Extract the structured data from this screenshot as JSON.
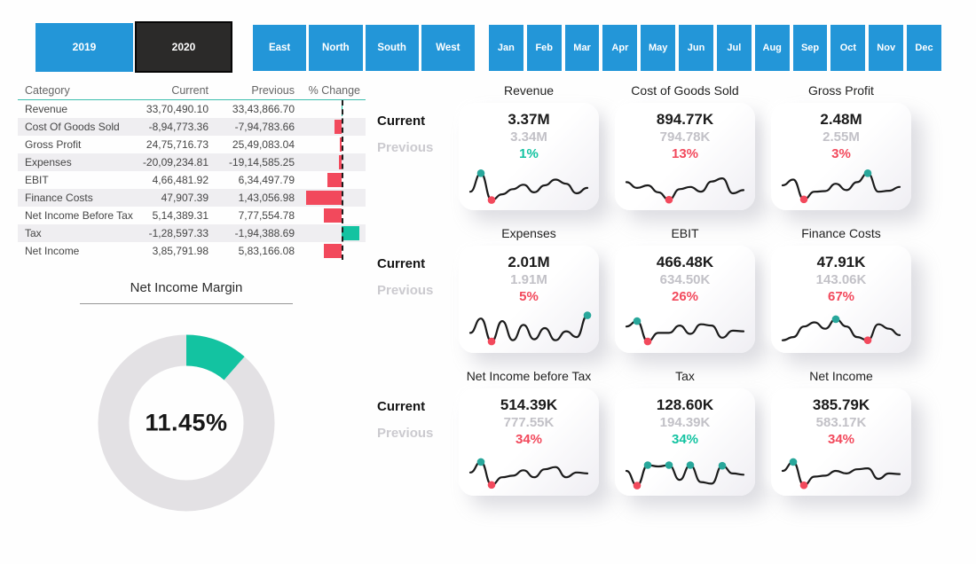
{
  "filters": {
    "years": [
      {
        "label": "2019",
        "selected": false
      },
      {
        "label": "2020",
        "selected": true
      }
    ],
    "regions": [
      "East",
      "North",
      "South",
      "West"
    ],
    "months": [
      "Jan",
      "Feb",
      "Mar",
      "Apr",
      "May",
      "Jun",
      "Jul",
      "Aug",
      "Sep",
      "Oct",
      "Nov",
      "Dec"
    ]
  },
  "table": {
    "headers": [
      "Category",
      "Current",
      "Previous",
      "% Change"
    ],
    "rows": [
      {
        "category": "Revenue",
        "current": "33,70,490.10",
        "previous": "33,43,866.70",
        "change_pct": 1,
        "positive": true
      },
      {
        "category": "Cost Of Goods Sold",
        "current": "-8,94,773.36",
        "previous": "-7,94,783.66",
        "change_pct": 13,
        "positive": false
      },
      {
        "category": "Gross Profit",
        "current": "24,75,716.73",
        "previous": "25,49,083.04",
        "change_pct": 3,
        "positive": false
      },
      {
        "category": "Expenses",
        "current": "-20,09,234.81",
        "previous": "-19,14,585.25",
        "change_pct": 5,
        "positive": false
      },
      {
        "category": "EBIT",
        "current": "4,66,481.92",
        "previous": "6,34,497.79",
        "change_pct": 26,
        "positive": false
      },
      {
        "category": "Finance Costs",
        "current": "47,907.39",
        "previous": "1,43,056.98",
        "change_pct": 67,
        "positive": false
      },
      {
        "category": "Net Income Before Tax",
        "current": "5,14,389.31",
        "previous": "7,77,554.78",
        "change_pct": 34,
        "positive": false
      },
      {
        "category": "Tax",
        "current": "-1,28,597.33",
        "previous": "-1,94,388.69",
        "change_pct": 34,
        "positive": true
      },
      {
        "category": "Net Income",
        "current": "3,85,791.98",
        "previous": "5,83,166.08",
        "change_pct": 34,
        "positive": false
      }
    ]
  },
  "donut": {
    "title": "Net Income Margin",
    "value_pct": 11.45,
    "value_label": "11.45%"
  },
  "kpi": {
    "row_labels": {
      "current": "Current",
      "previous": "Previous"
    },
    "cards": [
      {
        "title": "Revenue",
        "current": "3.37M",
        "previous": "3.34M",
        "change": "1%",
        "change_color": "green",
        "spark": [
          0.3,
          0.88,
          0.04,
          0.22,
          0.38,
          0.52,
          0.28,
          0.5,
          0.68,
          0.55,
          0.25,
          0.42
        ],
        "dots": [
          {
            "i": 1,
            "c": "teal"
          },
          {
            "i": 2,
            "c": "red"
          }
        ]
      },
      {
        "title": "Cost of Goods Sold",
        "current": "894.77K",
        "previous": "794.78K",
        "change": "13%",
        "change_color": "red",
        "spark": [
          0.6,
          0.42,
          0.5,
          0.28,
          0.05,
          0.38,
          0.45,
          0.3,
          0.62,
          0.72,
          0.25,
          0.35
        ],
        "dots": [
          {
            "i": 4,
            "c": "red"
          }
        ]
      },
      {
        "title": "Gross Profit",
        "current": "2.48M",
        "previous": "2.55M",
        "change": "3%",
        "change_color": "red",
        "spark": [
          0.5,
          0.68,
          0.06,
          0.3,
          0.32,
          0.55,
          0.35,
          0.6,
          0.88,
          0.3,
          0.33,
          0.45
        ],
        "dots": [
          {
            "i": 2,
            "c": "red"
          },
          {
            "i": 8,
            "c": "teal"
          }
        ]
      },
      {
        "title": "Expenses",
        "current": "2.01M",
        "previous": "1.91M",
        "change": "5%",
        "change_color": "red",
        "spark": [
          0.35,
          0.8,
          0.08,
          0.72,
          0.12,
          0.6,
          0.15,
          0.5,
          0.12,
          0.4,
          0.22,
          0.9
        ],
        "dots": [
          {
            "i": 2,
            "c": "red"
          },
          {
            "i": 11,
            "c": "teal"
          }
        ]
      },
      {
        "title": "EBIT",
        "current": "466.48K",
        "previous": "634.50K",
        "change": "26%",
        "change_color": "red",
        "spark": [
          0.55,
          0.72,
          0.08,
          0.35,
          0.35,
          0.58,
          0.32,
          0.62,
          0.58,
          0.2,
          0.42,
          0.4
        ],
        "dots": [
          {
            "i": 1,
            "c": "teal"
          },
          {
            "i": 2,
            "c": "red"
          }
        ]
      },
      {
        "title": "Finance Costs",
        "current": "47.91K",
        "previous": "143.06K",
        "change": "67%",
        "change_color": "red",
        "spark": [
          0.12,
          0.22,
          0.55,
          0.68,
          0.48,
          0.78,
          0.55,
          0.22,
          0.12,
          0.62,
          0.48,
          0.28
        ],
        "dots": [
          {
            "i": 5,
            "c": "teal"
          },
          {
            "i": 8,
            "c": "red"
          }
        ]
      },
      {
        "title": "Net Income before Tax",
        "current": "514.39K",
        "previous": "777.55K",
        "change": "34%",
        "change_color": "red",
        "spark": [
          0.45,
          0.78,
          0.06,
          0.3,
          0.35,
          0.52,
          0.3,
          0.55,
          0.62,
          0.3,
          0.45,
          0.42
        ],
        "dots": [
          {
            "i": 1,
            "c": "teal"
          },
          {
            "i": 2,
            "c": "red"
          }
        ]
      },
      {
        "title": "Tax",
        "current": "128.60K",
        "previous": "194.39K",
        "change": "34%",
        "change_color": "green",
        "spark": [
          0.5,
          0.04,
          0.68,
          0.64,
          0.68,
          0.22,
          0.68,
          0.15,
          0.1,
          0.66,
          0.42,
          0.38
        ],
        "dots": [
          {
            "i": 1,
            "c": "red"
          },
          {
            "i": 2,
            "c": "teal"
          },
          {
            "i": 4,
            "c": "teal"
          },
          {
            "i": 6,
            "c": "teal"
          },
          {
            "i": 9,
            "c": "teal"
          }
        ]
      },
      {
        "title": "Net Income",
        "current": "385.79K",
        "previous": "583.17K",
        "change": "34%",
        "change_color": "red",
        "spark": [
          0.5,
          0.78,
          0.05,
          0.32,
          0.35,
          0.5,
          0.42,
          0.55,
          0.58,
          0.25,
          0.42,
          0.4
        ],
        "dots": [
          {
            "i": 1,
            "c": "teal"
          },
          {
            "i": 2,
            "c": "red"
          }
        ]
      }
    ]
  },
  "colors": {
    "blue": "#2396d8",
    "dark_selected": "#2b2a29",
    "red": "#f2495c",
    "green": "#13c3a1",
    "teal_dot": "#28a79b",
    "previous_gray": "#c2c1c7",
    "spark_line": "#1b1b1b",
    "donut_track": "#e3e1e4"
  }
}
